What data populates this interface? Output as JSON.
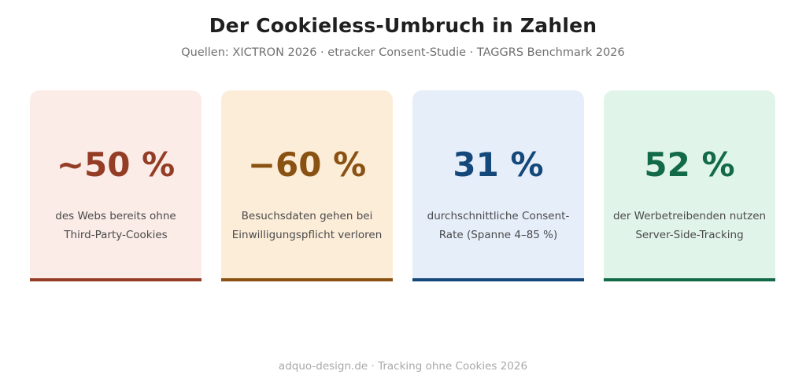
{
  "header": {
    "title": "Der Cookieless-Umbruch in Zahlen",
    "subtitle": "Quellen: XICTRON 2026 · etracker Consent-Studie · TAGGRS Benchmark 2026"
  },
  "cards": [
    {
      "value": "~50 %",
      "desc_line1": "des Webs bereits ohne",
      "desc_line2": "Third-Party-Cookies",
      "accent": "#943d26",
      "background": "#fbece7"
    },
    {
      "value": "−60 %",
      "desc_line1": "Besuchsdaten gehen bei",
      "desc_line2": "Einwilligungspflicht verloren",
      "accent": "#8a5212",
      "background": "#fcedd9"
    },
    {
      "value": "31 %",
      "desc_line1": "durchschnittliche Consent-",
      "desc_line2": "Rate (Spanne 4–85 %)",
      "accent": "#14487a",
      "background": "#e6eefa"
    },
    {
      "value": "52 %",
      "desc_line1": "der Werbetreibenden nutzen",
      "desc_line2": "Server-Side-Tracking",
      "accent": "#126a48",
      "background": "#e1f4ea"
    }
  ],
  "footer": {
    "text": "adquo-design.de · Tracking ohne Cookies 2026"
  }
}
